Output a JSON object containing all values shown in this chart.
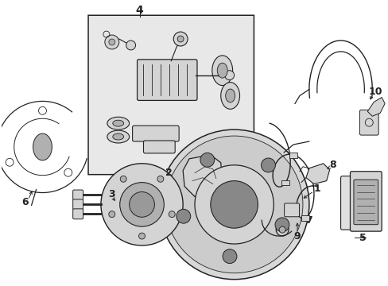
{
  "bg_color": "#ffffff",
  "lc": "#222222",
  "box_fill": "#e8e8e8",
  "part_fill": "#d4d4d4",
  "dark_fill": "#b0b0b0"
}
